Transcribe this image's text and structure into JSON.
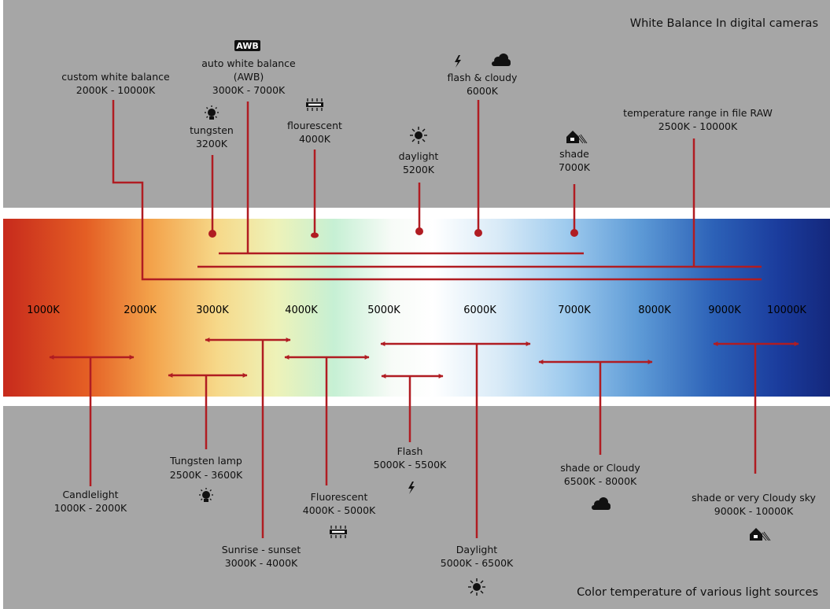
{
  "title_top": "White Balance In digital cameras",
  "title_bottom": "Color temperature of various light sources",
  "colors": {
    "panel": "#a6a6a6",
    "line": "#b01c22",
    "icon": "#111111"
  },
  "scale_ticks": [
    "1000K",
    "2000K",
    "3000K",
    "4000K",
    "5000K",
    "6000K",
    "7000K",
    "8000K",
    "9000K",
    "10000K"
  ],
  "camera_settings": {
    "custom": {
      "name": "custom white balance",
      "range": "2000K - 10000K"
    },
    "awb": {
      "badge": "AWB",
      "name": "auto white balance",
      "abbr": "(AWB)",
      "range": "3000K - 7000K"
    },
    "tungsten": {
      "name": "tungsten",
      "value": "3200K",
      "icon": "bulb-icon"
    },
    "fluorescent": {
      "name": "flourescent",
      "value": "4000K",
      "icon": "fluorescent-tube-icon"
    },
    "daylight": {
      "name": "daylight",
      "value": "5200K",
      "icon": "sun-icon"
    },
    "flash_cloudy": {
      "name": "flash & cloudy",
      "value": "6000K",
      "icons": [
        "flash-icon",
        "cloud-icon"
      ]
    },
    "shade": {
      "name": "shade",
      "value": "7000K",
      "icon": "shade-house-icon"
    },
    "raw": {
      "name": "temperature range in file RAW",
      "range": "2500K - 10000K"
    }
  },
  "light_sources": {
    "candlelight": {
      "name": "Candlelight",
      "range": "1000K - 2000K"
    },
    "tungsten_lamp": {
      "name": "Tungsten lamp",
      "range": "2500K - 3600K",
      "icon": "bulb-icon"
    },
    "sunrise": {
      "name": "Sunrise - sunset",
      "range": "3000K - 4000K"
    },
    "fluorescent": {
      "name": "Fluorescent",
      "range": "4000K - 5000K",
      "icon": "fluorescent-tube-icon"
    },
    "flash": {
      "name": "Flash",
      "range": "5000K - 5500K",
      "icon": "flash-icon"
    },
    "daylight": {
      "name": "Daylight",
      "range": "5000K - 6500K",
      "icon": "sun-icon"
    },
    "shade_cloudy": {
      "name": "shade or  Cloudy",
      "range": "6500K - 8000K",
      "icon": "cloud-icon"
    },
    "very_cloudy": {
      "name": "shade or very Cloudy sky",
      "range": "9000K - 10000K",
      "icon": "shade-house-icon"
    }
  }
}
